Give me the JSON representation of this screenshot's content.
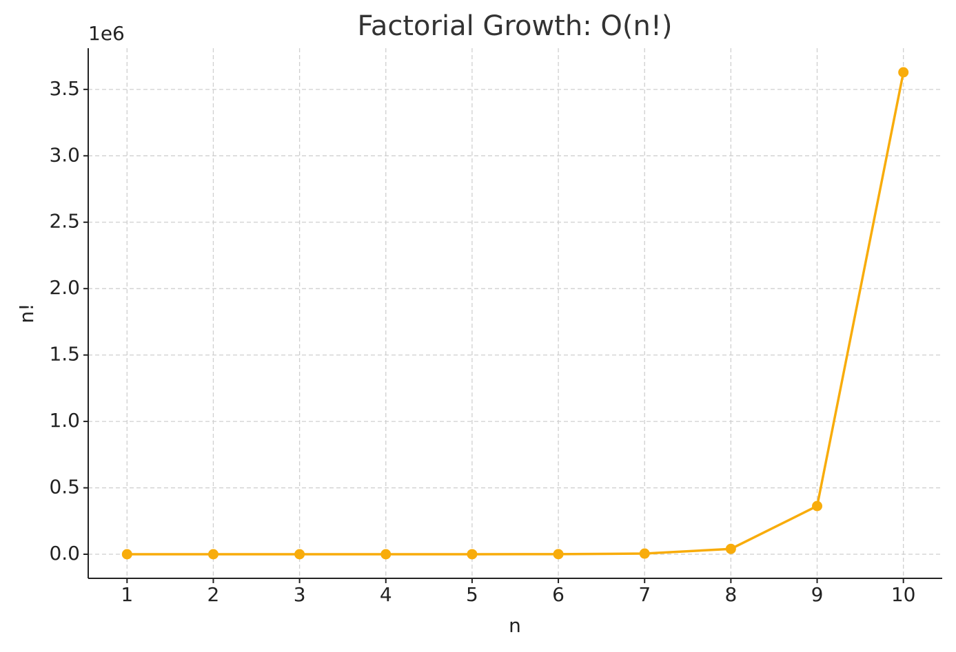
{
  "chart_data": {
    "type": "line",
    "title": "Factorial Growth: O(n!)",
    "x_label": "n",
    "y_label": "n!",
    "y_offset_label": "1e6",
    "x": [
      1,
      2,
      3,
      4,
      5,
      6,
      7,
      8,
      9,
      10
    ],
    "series": [
      {
        "name": "n!",
        "color": "#f8ac0b",
        "values": [
          1,
          2,
          6,
          24,
          120,
          720,
          5040,
          40320,
          362880,
          3628800
        ]
      }
    ],
    "xlim": [
      0.55,
      10.45
    ],
    "xticks": [
      1,
      2,
      3,
      4,
      5,
      6,
      7,
      8,
      9,
      10
    ],
    "ylim": [
      -181440,
      3810240
    ],
    "yticks": [
      {
        "value": 0,
        "label": "0.0"
      },
      {
        "value": 500000,
        "label": "0.5"
      },
      {
        "value": 1000000,
        "label": "1.0"
      },
      {
        "value": 1500000,
        "label": "1.5"
      },
      {
        "value": 2000000,
        "label": "2.0"
      },
      {
        "value": 2500000,
        "label": "2.5"
      },
      {
        "value": 3000000,
        "label": "3.0"
      },
      {
        "value": 3500000,
        "label": "3.5"
      }
    ],
    "grid": true
  }
}
